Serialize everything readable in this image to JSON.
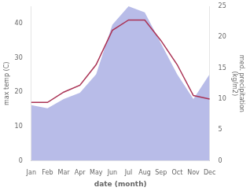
{
  "chart_data": {
    "type": "line",
    "categories": [
      "Jan",
      "Feb",
      "Mar",
      "Apr",
      "May",
      "Jun",
      "Jul",
      "Aug",
      "Sep",
      "Oct",
      "Nov",
      "Dec"
    ],
    "xlabel": "date (month)",
    "ylabel": "max temp (C)",
    "y2label": "med. precipitation\n(kg/m2)",
    "series": [
      {
        "type": "area",
        "color": "#b8bce8",
        "axis": "y2",
        "values": [
          9,
          8.5,
          10,
          11,
          14,
          22,
          25,
          24,
          19,
          14,
          10,
          14
        ]
      },
      {
        "type": "line",
        "color": "#aa3355",
        "values": [
          17,
          17,
          20,
          22,
          28,
          38,
          41,
          41,
          35,
          28,
          19,
          18
        ]
      }
    ],
    "ylim": [
      0,
      45
    ],
    "yticks": [
      0,
      10,
      20,
      30,
      40
    ],
    "y2lim": [
      0,
      25
    ],
    "y2ticks": [
      0,
      5,
      10,
      15,
      20,
      25
    ],
    "grid": false
  }
}
